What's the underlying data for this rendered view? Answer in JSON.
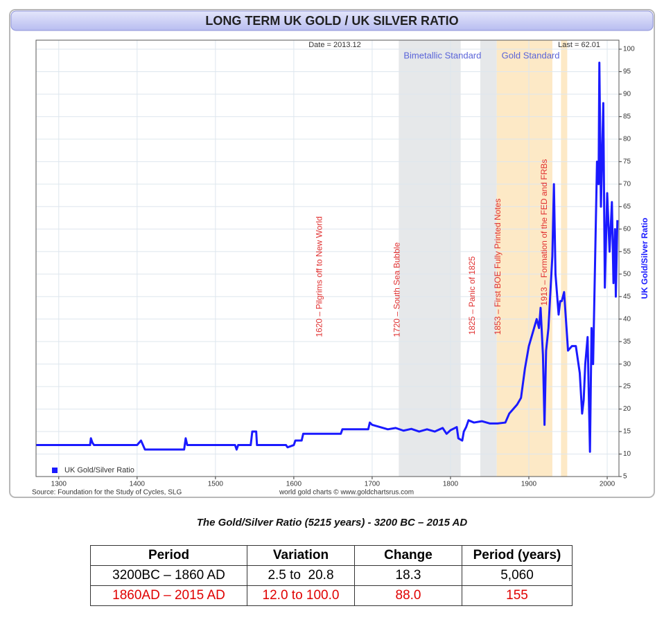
{
  "chart_data": {
    "type": "line",
    "title": "LONG TERM UK GOLD / UK SILVER RATIO",
    "date_label": "Date = 2013.12",
    "last_label": "Last = 62.01",
    "y_axis_label": "UK Gold/Silver Ratio",
    "source": "Source: Foundation for the Study of Cycles, SLG",
    "credit": "world gold charts © www.goldchartsrus.com",
    "xlim": [
      1271,
      2015
    ],
    "xticks": [
      1300,
      1400,
      1500,
      1600,
      1700,
      1800,
      1900,
      2000
    ],
    "ylim": [
      5,
      102
    ],
    "yticks": [
      5,
      10,
      15,
      20,
      25,
      30,
      35,
      40,
      45,
      50,
      55,
      60,
      65,
      70,
      75,
      80,
      85,
      90,
      95,
      100
    ],
    "grid": true,
    "legend": "bottom-left",
    "bands": [
      {
        "label": "Bimetallic Standard",
        "start": 1734,
        "end": 1813,
        "color": "#e6e8ea"
      },
      {
        "start": 1838,
        "end": 1859,
        "color": "#e6e8ea"
      },
      {
        "label": "Gold Standard",
        "start": 1859,
        "end": 1930,
        "color": "#fde9c6"
      },
      {
        "start": 1941,
        "end": 1949,
        "color": "#fde9c6"
      }
    ],
    "annotations": [
      {
        "text": "1620 – Pilgrims off to New World",
        "x": 1633,
        "y": 36
      },
      {
        "text": "1720 – South Sea Bubble",
        "x": 1732,
        "y": 36
      },
      {
        "text": "1825 – Panic of 1825",
        "x": 1828,
        "y": 36.5
      },
      {
        "text": "1853 – First BOE Fully Printed Notes",
        "x": 1861,
        "y": 36.5
      },
      {
        "text": "1913 – Formation of the FED and FRBs",
        "x": 1920,
        "y": 43
      }
    ],
    "series": [
      {
        "name": "UK Gold/Silver Ratio",
        "color": "#1a1aff",
        "x": [
          1271,
          1340,
          1341,
          1343,
          1345,
          1400,
          1405,
          1410,
          1460,
          1462,
          1464,
          1525,
          1527,
          1529,
          1545,
          1547,
          1552,
          1553,
          1590,
          1592,
          1600,
          1602,
          1610,
          1612,
          1660,
          1662,
          1695,
          1697,
          1700,
          1710,
          1720,
          1730,
          1740,
          1750,
          1760,
          1770,
          1780,
          1790,
          1795,
          1800,
          1808,
          1810,
          1815,
          1817,
          1820,
          1823,
          1830,
          1840,
          1850,
          1860,
          1870,
          1875,
          1880,
          1885,
          1890,
          1895,
          1900,
          1905,
          1910,
          1913,
          1915,
          1918,
          1920,
          1922,
          1925,
          1930,
          1932,
          1934,
          1938,
          1940,
          1942,
          1945,
          1950,
          1955,
          1960,
          1965,
          1968,
          1970,
          1972,
          1975,
          1978,
          1980,
          1982,
          1985,
          1987,
          1989,
          1990,
          1992,
          1995,
          1997,
          2000,
          2003,
          2006,
          2008,
          2010,
          2011,
          2013
        ],
        "values": [
          12,
          12,
          13.5,
          12.5,
          12,
          12,
          13,
          11,
          11,
          13.5,
          12,
          12,
          11,
          12,
          12,
          15,
          15,
          12,
          12,
          11.5,
          12,
          13,
          13,
          14.5,
          14.5,
          15.5,
          15.5,
          17,
          16.5,
          16,
          15.5,
          15.8,
          15.2,
          15.6,
          15,
          15.5,
          15,
          15.8,
          14.5,
          15.3,
          16,
          13.5,
          13,
          15,
          16,
          17.5,
          17,
          17.3,
          16.8,
          16.8,
          17,
          19,
          20,
          21,
          22.5,
          29,
          34,
          37,
          40,
          38,
          42.5,
          32,
          16.5,
          33,
          38,
          54,
          70,
          50,
          41,
          44,
          44,
          46,
          33,
          34,
          34,
          28,
          19,
          22,
          30,
          36,
          10.5,
          38,
          30,
          57,
          75,
          70,
          97,
          65,
          88,
          47,
          68,
          55,
          66,
          48,
          60,
          45,
          62
        ]
      }
    ]
  },
  "caption": "The Gold/Silver Ratio (5215 years) - 3200 BC – 2015 AD",
  "table": {
    "header": [
      "Period",
      "Variation",
      "Change",
      "Period (years)"
    ],
    "rows": [
      [
        "3200BC – 1860 AD",
        "2.5 to  20.8",
        "18.3",
        "5,060"
      ],
      [
        "1860AD – 2015 AD",
        "12.0 to 100.0",
        "88.0",
        "155"
      ]
    ]
  }
}
